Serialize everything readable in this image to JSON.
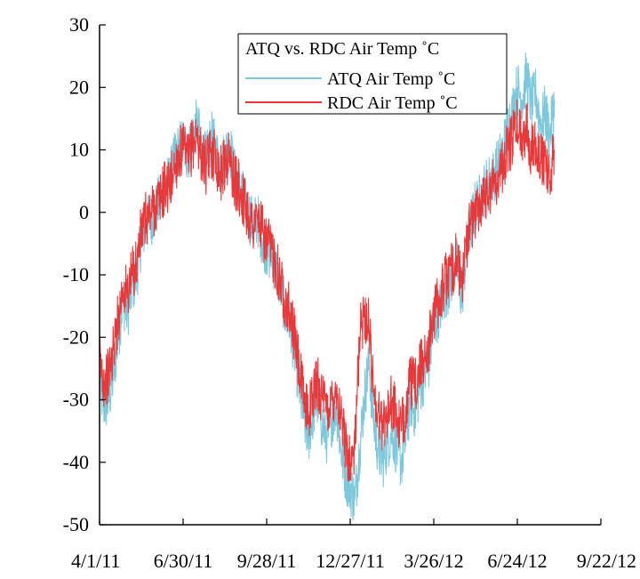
{
  "chart_data": {
    "type": "line",
    "title": "",
    "xlabel": "",
    "ylabel": "",
    "x_axis_kind": "date",
    "xlim": [
      "2011-04-01",
      "2012-09-22"
    ],
    "ylim": [
      -50,
      30
    ],
    "x_ticks": [
      {
        "date": "2011-04-01",
        "label": "4/1/11"
      },
      {
        "date": "2011-06-30",
        "label": "6/30/11"
      },
      {
        "date": "2011-09-28",
        "label": "9/28/11"
      },
      {
        "date": "2011-12-27",
        "label": "12/27/11"
      },
      {
        "date": "2012-03-26",
        "label": "3/26/12"
      },
      {
        "date": "2012-06-24",
        "label": "6/24/12"
      },
      {
        "date": "2012-09-22",
        "label": "9/22/12"
      }
    ],
    "y_ticks": [
      -50,
      -40,
      -30,
      -20,
      -10,
      0,
      10,
      20,
      30
    ],
    "grid": false,
    "legend": {
      "title": "ATQ vs. RDC Air Temp ˚C",
      "placement": "top-center"
    },
    "series": [
      {
        "name": "ATQ Air Temp ˚C",
        "color": "#7ec8dc",
        "x": [
          "2011-04-01",
          "2011-04-06",
          "2011-04-11",
          "2011-04-16",
          "2011-04-21",
          "2011-04-26",
          "2011-05-01",
          "2011-05-06",
          "2011-05-11",
          "2011-05-16",
          "2011-05-21",
          "2011-05-26",
          "2011-05-31",
          "2011-06-05",
          "2011-06-10",
          "2011-06-15",
          "2011-06-20",
          "2011-06-25",
          "2011-06-30",
          "2011-07-05",
          "2011-07-10",
          "2011-07-15",
          "2011-07-20",
          "2011-07-25",
          "2011-07-30",
          "2011-08-04",
          "2011-08-09",
          "2011-08-14",
          "2011-08-19",
          "2011-08-24",
          "2011-08-29",
          "2011-09-03",
          "2011-09-08",
          "2011-09-13",
          "2011-09-18",
          "2011-09-23",
          "2011-09-28",
          "2011-10-03",
          "2011-10-08",
          "2011-10-13",
          "2011-10-18",
          "2011-10-23",
          "2011-10-28",
          "2011-11-02",
          "2011-11-07",
          "2011-11-12",
          "2011-11-17",
          "2011-11-22",
          "2011-11-27",
          "2011-12-02",
          "2011-12-07",
          "2011-12-12",
          "2011-12-17",
          "2011-12-22",
          "2011-12-27",
          "2012-01-01",
          "2012-01-06",
          "2012-01-11",
          "2012-01-16",
          "2012-01-21",
          "2012-01-26",
          "2012-01-31",
          "2012-02-05",
          "2012-02-10",
          "2012-02-15",
          "2012-02-20",
          "2012-02-25",
          "2012-03-01",
          "2012-03-06",
          "2012-03-11",
          "2012-03-16",
          "2012-03-21",
          "2012-03-26",
          "2012-03-31",
          "2012-04-05",
          "2012-04-10",
          "2012-04-15",
          "2012-04-20",
          "2012-04-25",
          "2012-04-30",
          "2012-05-05",
          "2012-05-10",
          "2012-05-15",
          "2012-05-20",
          "2012-05-25",
          "2012-05-30",
          "2012-06-04",
          "2012-06-09",
          "2012-06-14",
          "2012-06-19",
          "2012-06-24",
          "2012-06-29",
          "2012-07-04",
          "2012-07-09",
          "2012-07-14",
          "2012-07-19",
          "2012-07-24",
          "2012-07-29",
          "2012-08-03"
        ],
        "y": [
          -28,
          -31,
          -30,
          -26,
          -20,
          -14,
          -16,
          -12,
          -10,
          -4,
          -2,
          -1,
          0,
          2,
          4,
          5,
          8,
          10,
          11,
          9,
          12,
          14,
          10,
          8,
          12,
          10,
          7,
          9,
          11,
          6,
          5,
          2,
          0,
          -2,
          -1,
          -4,
          -6,
          -7,
          -9,
          -12,
          -16,
          -18,
          -22,
          -28,
          -33,
          -36,
          -32,
          -30,
          -34,
          -36,
          -33,
          -31,
          -38,
          -42,
          -44,
          -46,
          -38,
          -30,
          -24,
          -33,
          -38,
          -40,
          -37,
          -35,
          -38,
          -40,
          -36,
          -30,
          -32,
          -28,
          -26,
          -24,
          -18,
          -16,
          -14,
          -12,
          -10,
          -8,
          -14,
          -6,
          -2,
          1,
          2,
          4,
          5,
          6,
          8,
          10,
          14,
          16,
          20,
          18,
          22,
          17,
          19,
          14,
          16,
          12,
          18
        ]
      },
      {
        "name": "RDC Air Temp ˚C",
        "color": "#e8383a",
        "x": [
          "2011-04-01",
          "2011-04-06",
          "2011-04-11",
          "2011-04-16",
          "2011-04-21",
          "2011-04-26",
          "2011-05-01",
          "2011-05-06",
          "2011-05-11",
          "2011-05-16",
          "2011-05-21",
          "2011-05-26",
          "2011-05-31",
          "2011-06-05",
          "2011-06-10",
          "2011-06-15",
          "2011-06-20",
          "2011-06-25",
          "2011-06-30",
          "2011-07-05",
          "2011-07-10",
          "2011-07-15",
          "2011-07-20",
          "2011-07-25",
          "2011-07-30",
          "2011-08-04",
          "2011-08-09",
          "2011-08-14",
          "2011-08-19",
          "2011-08-24",
          "2011-08-29",
          "2011-09-03",
          "2011-09-08",
          "2011-09-13",
          "2011-09-18",
          "2011-09-23",
          "2011-09-28",
          "2011-10-03",
          "2011-10-08",
          "2011-10-13",
          "2011-10-18",
          "2011-10-23",
          "2011-10-28",
          "2011-11-02",
          "2011-11-07",
          "2011-11-12",
          "2011-11-17",
          "2011-11-22",
          "2011-11-27",
          "2011-12-02",
          "2011-12-07",
          "2011-12-12",
          "2011-12-17",
          "2011-12-22",
          "2011-12-27",
          "2012-01-01",
          "2012-01-06",
          "2012-01-11",
          "2012-01-16",
          "2012-01-21",
          "2012-01-26",
          "2012-01-31",
          "2012-02-05",
          "2012-02-10",
          "2012-02-15",
          "2012-02-20",
          "2012-02-25",
          "2012-03-01",
          "2012-03-06",
          "2012-03-11",
          "2012-03-16",
          "2012-03-21",
          "2012-03-26",
          "2012-03-31",
          "2012-04-05",
          "2012-04-10",
          "2012-04-15",
          "2012-04-20",
          "2012-04-25",
          "2012-04-30",
          "2012-05-05",
          "2012-05-10",
          "2012-05-15",
          "2012-05-20",
          "2012-05-25",
          "2012-05-30",
          "2012-06-04",
          "2012-06-09",
          "2012-06-14",
          "2012-06-19",
          "2012-06-24",
          "2012-06-29",
          "2012-07-04",
          "2012-07-09",
          "2012-07-14",
          "2012-07-19",
          "2012-07-24",
          "2012-07-29",
          "2012-08-03"
        ],
        "y": [
          -24,
          -27,
          -26,
          -22,
          -17,
          -12,
          -13,
          -10,
          -8,
          -3,
          -1,
          0,
          1,
          2,
          4,
          4,
          7,
          9,
          10,
          8,
          11,
          12,
          9,
          7,
          10,
          9,
          6,
          8,
          9,
          5,
          4,
          2,
          0,
          -2,
          -1,
          -3,
          -5,
          -6,
          -8,
          -11,
          -14,
          -16,
          -20,
          -25,
          -30,
          -32,
          -29,
          -27,
          -30,
          -32,
          -30,
          -28,
          -33,
          -37,
          -40,
          -38,
          -20,
          -16,
          -18,
          -28,
          -32,
          -34,
          -32,
          -30,
          -33,
          -35,
          -31,
          -27,
          -28,
          -25,
          -23,
          -21,
          -16,
          -14,
          -12,
          -10,
          -9,
          -7,
          -12,
          -5,
          -2,
          0,
          2,
          3,
          4,
          5,
          6,
          8,
          10,
          12,
          14,
          12,
          14,
          10,
          12,
          8,
          9,
          5,
          10
        ]
      }
    ]
  }
}
